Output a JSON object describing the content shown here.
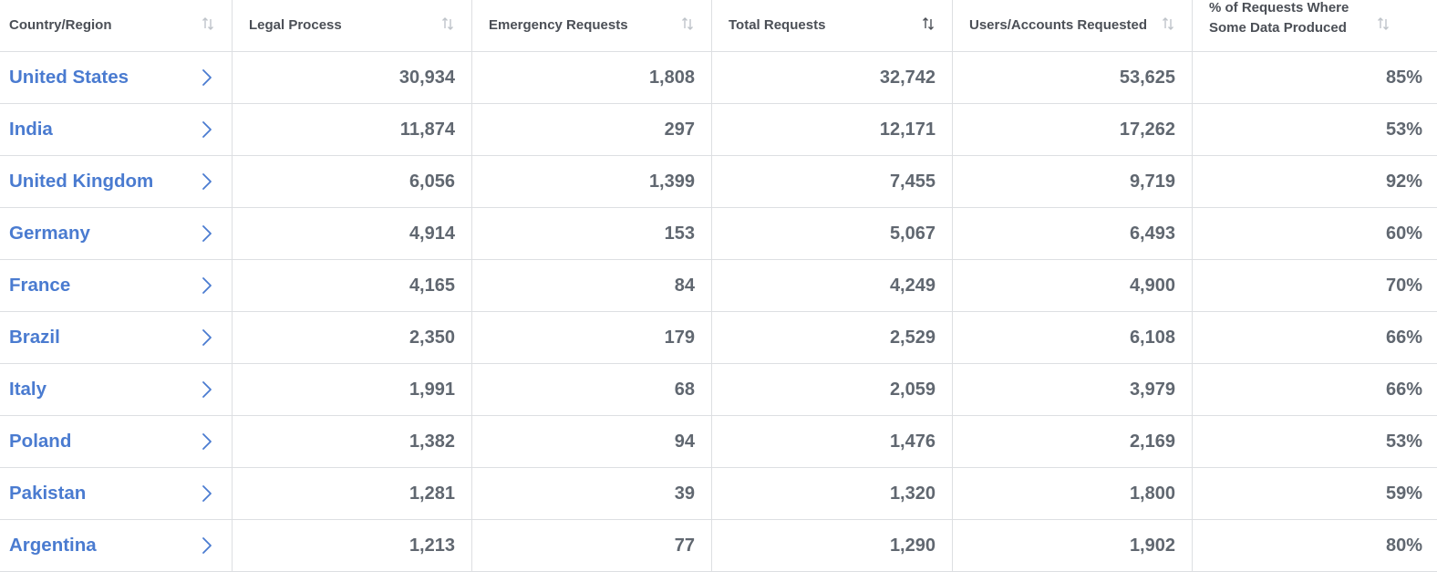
{
  "columns": [
    {
      "label": "Country/Region",
      "sort_active": false
    },
    {
      "label": "Legal Process",
      "sort_active": false
    },
    {
      "label": "Emergency Requests",
      "sort_active": false
    },
    {
      "label": "Total Requests",
      "sort_active": true
    },
    {
      "label": "Users/Accounts Requested",
      "sort_active": false
    },
    {
      "label": "% of Requests Where Some Data Produced",
      "sort_active": false
    }
  ],
  "rows": [
    {
      "country": "United States",
      "legal": "30,934",
      "emergency": "1,808",
      "total": "32,742",
      "users": "53,625",
      "percent": "85%"
    },
    {
      "country": "India",
      "legal": "11,874",
      "emergency": "297",
      "total": "12,171",
      "users": "17,262",
      "percent": "53%"
    },
    {
      "country": "United Kingdom",
      "legal": "6,056",
      "emergency": "1,399",
      "total": "7,455",
      "users": "9,719",
      "percent": "92%"
    },
    {
      "country": "Germany",
      "legal": "4,914",
      "emergency": "153",
      "total": "5,067",
      "users": "6,493",
      "percent": "60%"
    },
    {
      "country": "France",
      "legal": "4,165",
      "emergency": "84",
      "total": "4,249",
      "users": "4,900",
      "percent": "70%"
    },
    {
      "country": "Brazil",
      "legal": "2,350",
      "emergency": "179",
      "total": "2,529",
      "users": "6,108",
      "percent": "66%"
    },
    {
      "country": "Italy",
      "legal": "1,991",
      "emergency": "68",
      "total": "2,059",
      "users": "3,979",
      "percent": "66%"
    },
    {
      "country": "Poland",
      "legal": "1,382",
      "emergency": "94",
      "total": "1,476",
      "users": "2,169",
      "percent": "53%"
    },
    {
      "country": "Pakistan",
      "legal": "1,281",
      "emergency": "39",
      "total": "1,320",
      "users": "1,800",
      "percent": "59%"
    },
    {
      "country": "Argentina",
      "legal": "1,213",
      "emergency": "77",
      "total": "1,290",
      "users": "1,902",
      "percent": "80%"
    }
  ],
  "colors": {
    "link": "#4a7bd0",
    "text": "#606770",
    "header_text": "#4b4f56",
    "border": "#dddfe2",
    "sort_icon_inactive": "#bec3c9",
    "sort_icon_active": "#4b4f56"
  },
  "icons": {
    "sort": "sort-arrows-icon",
    "row_expand": "chevron-right-icon"
  }
}
